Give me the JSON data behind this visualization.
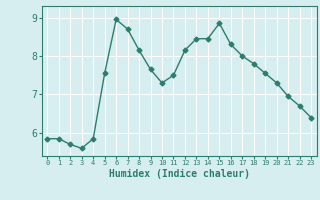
{
  "x": [
    0,
    1,
    2,
    3,
    4,
    5,
    6,
    7,
    8,
    9,
    10,
    11,
    12,
    13,
    14,
    15,
    16,
    17,
    18,
    19,
    20,
    21,
    22,
    23
  ],
  "y": [
    5.85,
    5.85,
    5.7,
    5.6,
    5.85,
    7.55,
    8.95,
    8.7,
    8.15,
    7.65,
    7.3,
    7.5,
    8.15,
    8.45,
    8.45,
    8.85,
    8.3,
    8.0,
    7.8,
    7.55,
    7.3,
    6.95,
    6.7,
    6.4
  ],
  "line_color": "#2d7d6e",
  "marker": "D",
  "marker_size": 2.5,
  "bg_color": "#d6eef0",
  "grid_color": "#ffffff",
  "tick_color": "#2d7d6e",
  "xlabel": "Humidex (Indice chaleur)",
  "xlabel_fontsize": 7,
  "yticks": [
    6,
    7,
    8,
    9
  ],
  "xticks": [
    0,
    1,
    2,
    3,
    4,
    5,
    6,
    7,
    8,
    9,
    10,
    11,
    12,
    13,
    14,
    15,
    16,
    17,
    18,
    19,
    20,
    21,
    22,
    23
  ],
  "ylim": [
    5.4,
    9.3
  ],
  "xlim": [
    -0.5,
    23.5
  ]
}
